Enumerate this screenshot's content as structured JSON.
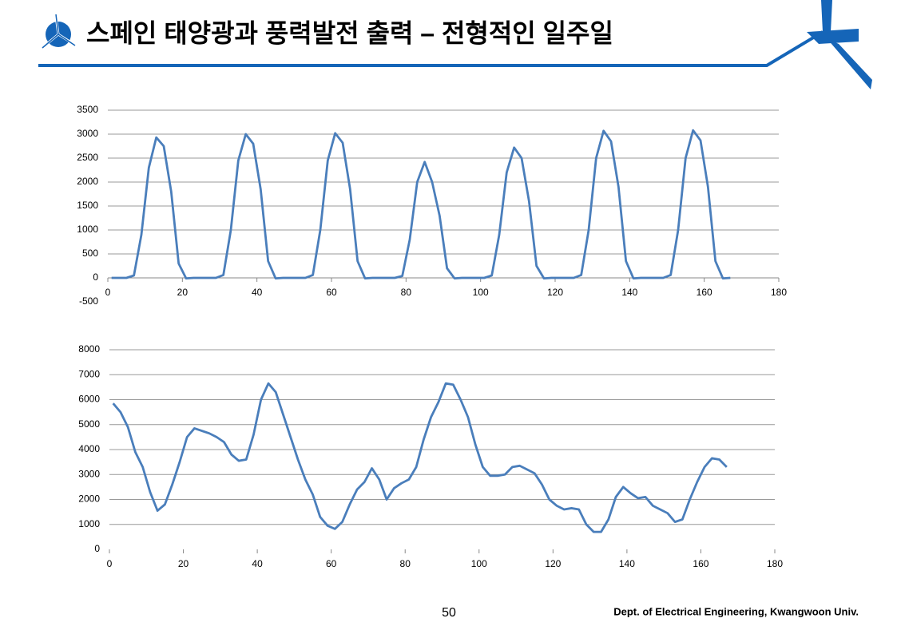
{
  "header": {
    "title": "스페인 태양광과 풍력발전 출력 – 전형적인 일주일"
  },
  "footer": {
    "page": "50",
    "affiliation": "Dept. of Electrical Engineering, Kwangwoon Univ."
  },
  "chart_data": [
    {
      "type": "line",
      "grid": true,
      "x": [
        1,
        3,
        5,
        7,
        9,
        11,
        13,
        15,
        17,
        19,
        21,
        23,
        25,
        27,
        29,
        31,
        33,
        35,
        37,
        39,
        41,
        43,
        45,
        47,
        49,
        51,
        53,
        55,
        57,
        59,
        61,
        63,
        65,
        67,
        69,
        71,
        73,
        75,
        77,
        79,
        81,
        83,
        85,
        87,
        89,
        91,
        93,
        95,
        97,
        99,
        101,
        103,
        105,
        107,
        109,
        111,
        113,
        115,
        117,
        119,
        121,
        123,
        125,
        127,
        129,
        131,
        133,
        135,
        137,
        139,
        141,
        143,
        145,
        147,
        149,
        151,
        153,
        155,
        157,
        159,
        161,
        163,
        165,
        167
      ],
      "series": [
        {
          "color": "#4a7ebb",
          "values": [
            0,
            0,
            0,
            50,
            900,
            2300,
            2930,
            2750,
            1800,
            300,
            -10,
            0,
            0,
            0,
            0,
            60,
            1000,
            2450,
            3000,
            2800,
            1850,
            350,
            -10,
            0,
            0,
            0,
            0,
            60,
            1000,
            2450,
            3020,
            2820,
            1850,
            350,
            -10,
            0,
            0,
            0,
            0,
            40,
            800,
            2000,
            2420,
            2000,
            1300,
            200,
            -10,
            0,
            0,
            0,
            0,
            50,
            900,
            2200,
            2720,
            2500,
            1600,
            250,
            -10,
            0,
            0,
            0,
            0,
            60,
            1000,
            2500,
            3070,
            2850,
            1900,
            350,
            -10,
            0,
            0,
            0,
            0,
            60,
            1000,
            2500,
            3080,
            2870,
            1900,
            350,
            -10,
            0
          ]
        }
      ],
      "xlim": [
        0,
        180
      ],
      "xticks": [
        0,
        20,
        40,
        60,
        80,
        100,
        120,
        140,
        160,
        180
      ],
      "ylim": [
        -500,
        3500
      ],
      "yticks": [
        -500,
        0,
        500,
        1000,
        1500,
        2000,
        2500,
        3000,
        3500
      ]
    },
    {
      "type": "line",
      "grid": true,
      "x": [
        1,
        3,
        5,
        7,
        9,
        11,
        13,
        15,
        17,
        19,
        21,
        23,
        25,
        27,
        29,
        31,
        33,
        35,
        37,
        39,
        41,
        43,
        45,
        47,
        49,
        51,
        53,
        55,
        57,
        59,
        61,
        63,
        65,
        67,
        69,
        71,
        73,
        75,
        77,
        79,
        81,
        83,
        85,
        87,
        89,
        91,
        93,
        95,
        97,
        99,
        101,
        103,
        105,
        107,
        109,
        111,
        113,
        115,
        117,
        119,
        121,
        123,
        125,
        127,
        129,
        131,
        133,
        135,
        137,
        139,
        141,
        143,
        145,
        147,
        149,
        151,
        153,
        155,
        157,
        159,
        161,
        163,
        165,
        167
      ],
      "series": [
        {
          "color": "#4a7ebb",
          "values": [
            5850,
            5500,
            4900,
            3900,
            3300,
            2300,
            1550,
            1800,
            2600,
            3500,
            4500,
            4850,
            4750,
            4650,
            4500,
            4300,
            3800,
            3550,
            3600,
            4600,
            6000,
            6650,
            6300,
            5400,
            4500,
            3600,
            2800,
            2200,
            1300,
            950,
            820,
            1100,
            1800,
            2400,
            2700,
            3250,
            2800,
            2000,
            2450,
            2650,
            2800,
            3300,
            4400,
            5300,
            5900,
            6650,
            6600,
            6000,
            5300,
            4200,
            3300,
            2950,
            2950,
            3000,
            3300,
            3350,
            3200,
            3050,
            2600,
            2000,
            1750,
            1600,
            1650,
            1600,
            1000,
            700,
            700,
            1200,
            2100,
            2500,
            2250,
            2050,
            2100,
            1750,
            1600,
            1450,
            1100,
            1200,
            2000,
            2700,
            3300,
            3650,
            3600,
            3300
          ]
        }
      ],
      "xlim": [
        0,
        180
      ],
      "xticks": [
        0,
        20,
        40,
        60,
        80,
        100,
        120,
        140,
        160,
        180
      ],
      "ylim": [
        0,
        8000
      ],
      "yticks": [
        0,
        1000,
        2000,
        3000,
        4000,
        5000,
        6000,
        7000,
        8000
      ]
    }
  ]
}
